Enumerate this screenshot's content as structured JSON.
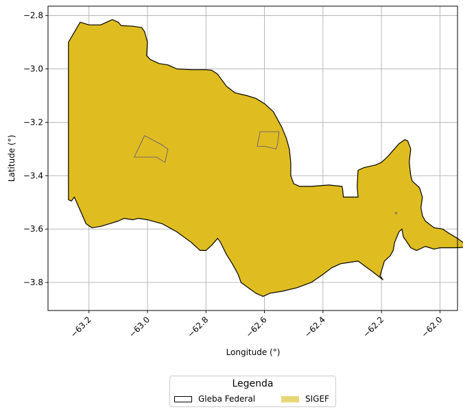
{
  "chart_data": {
    "type": "map",
    "xlabel": "Longitude (°)",
    "ylabel": "Latitude (°)",
    "xlim": [
      -63.34,
      -61.94
    ],
    "ylim": [
      -3.905,
      -2.765
    ],
    "grid": true,
    "x_ticks": [
      -63.2,
      -63.0,
      -62.8,
      -62.6,
      -62.4,
      -62.2,
      -62.0
    ],
    "x_tick_labels": [
      "−63.2",
      "−63.0",
      "−62.8",
      "−62.6",
      "−62.4",
      "−62.2",
      "−62.0"
    ],
    "y_ticks": [
      -2.8,
      -3.0,
      -3.2,
      -3.4,
      -3.6,
      -3.8
    ],
    "y_tick_labels": [
      "−2.8",
      "−3.0",
      "−3.2",
      "−3.4",
      "−3.6",
      "−3.8"
    ],
    "legend": {
      "title": "Legenda",
      "placement": "bottom-center",
      "entries": [
        {
          "label": "Gleba Federal",
          "fill": "#ffffff",
          "edge": "#000000"
        },
        {
          "label": "SIGEF",
          "fill": "#e8d775",
          "edge": "#e8d775"
        }
      ]
    },
    "colors": {
      "sigef_fill": "#dfbd20",
      "gleba_edge": "#000000",
      "inner_edge": "#5a4a8a",
      "grid": "#b0b0b0"
    },
    "series": [
      {
        "name": "SIGEF",
        "kind": "polygon",
        "coords": [
          [
            -63.27,
            -2.9
          ],
          [
            -63.23,
            -2.825
          ],
          [
            -63.215,
            -2.83
          ],
          [
            -63.2,
            -2.835
          ],
          [
            -63.16,
            -2.835
          ],
          [
            -63.13,
            -2.82
          ],
          [
            -63.12,
            -2.815
          ],
          [
            -63.1,
            -2.825
          ],
          [
            -63.09,
            -2.838
          ],
          [
            -63.05,
            -2.84
          ],
          [
            -63.02,
            -2.845
          ],
          [
            -63.01,
            -2.86
          ],
          [
            -63.0,
            -2.9
          ],
          [
            -63.003,
            -2.95
          ],
          [
            -62.99,
            -2.965
          ],
          [
            -62.96,
            -2.98
          ],
          [
            -62.93,
            -2.985
          ],
          [
            -62.9,
            -3.0
          ],
          [
            -62.85,
            -3.003
          ],
          [
            -62.8,
            -3.003
          ],
          [
            -62.78,
            -3.005
          ],
          [
            -62.76,
            -3.02
          ],
          [
            -62.73,
            -3.065
          ],
          [
            -62.7,
            -3.09
          ],
          [
            -62.66,
            -3.1
          ],
          [
            -62.63,
            -3.11
          ],
          [
            -62.6,
            -3.13
          ],
          [
            -62.57,
            -3.16
          ],
          [
            -62.54,
            -3.22
          ],
          [
            -62.525,
            -3.26
          ],
          [
            -62.515,
            -3.3
          ],
          [
            -62.51,
            -3.35
          ],
          [
            -62.51,
            -3.4
          ],
          [
            -62.5,
            -3.43
          ],
          [
            -62.48,
            -3.44
          ],
          [
            -62.44,
            -3.44
          ],
          [
            -62.38,
            -3.435
          ],
          [
            -62.335,
            -3.44
          ],
          [
            -62.333,
            -3.45
          ],
          [
            -62.33,
            -3.48
          ],
          [
            -62.31,
            -3.48
          ],
          [
            -62.28,
            -3.48
          ],
          [
            -62.283,
            -3.44
          ],
          [
            -62.28,
            -3.38
          ],
          [
            -62.26,
            -3.37
          ],
          [
            -62.22,
            -3.36
          ],
          [
            -62.2,
            -3.35
          ],
          [
            -62.18,
            -3.33
          ],
          [
            -62.16,
            -3.305
          ],
          [
            -62.14,
            -3.28
          ],
          [
            -62.12,
            -3.265
          ],
          [
            -62.11,
            -3.27
          ],
          [
            -62.1,
            -3.3
          ],
          [
            -62.105,
            -3.35
          ],
          [
            -62.1,
            -3.4
          ],
          [
            -62.095,
            -3.42
          ],
          [
            -62.07,
            -3.445
          ],
          [
            -62.06,
            -3.48
          ],
          [
            -62.065,
            -3.52
          ],
          [
            -62.06,
            -3.55
          ],
          [
            -62.05,
            -3.57
          ],
          [
            -62.02,
            -3.595
          ],
          [
            -61.99,
            -3.6
          ],
          [
            -61.97,
            -3.615
          ],
          [
            -61.94,
            -3.635
          ],
          [
            -61.915,
            -3.655
          ],
          [
            -61.883,
            -3.667
          ],
          [
            -61.95,
            -3.67
          ],
          [
            -62.0,
            -3.67
          ],
          [
            -62.02,
            -3.675
          ],
          [
            -62.05,
            -3.665
          ],
          [
            -62.08,
            -3.68
          ],
          [
            -62.1,
            -3.67
          ],
          [
            -62.115,
            -3.645
          ],
          [
            -62.125,
            -3.63
          ],
          [
            -62.13,
            -3.6
          ],
          [
            -62.14,
            -3.61
          ],
          [
            -62.155,
            -3.65
          ],
          [
            -62.16,
            -3.68
          ],
          [
            -62.17,
            -3.7
          ],
          [
            -62.19,
            -3.72
          ],
          [
            -62.205,
            -3.775
          ],
          [
            -62.195,
            -3.79
          ],
          [
            -62.23,
            -3.76
          ],
          [
            -62.28,
            -3.72
          ],
          [
            -62.34,
            -3.73
          ],
          [
            -62.37,
            -3.745
          ],
          [
            -62.4,
            -3.77
          ],
          [
            -62.44,
            -3.8
          ],
          [
            -62.49,
            -3.82
          ],
          [
            -62.54,
            -3.833
          ],
          [
            -62.58,
            -3.84
          ],
          [
            -62.605,
            -3.852
          ],
          [
            -62.63,
            -3.84
          ],
          [
            -62.68,
            -3.8
          ],
          [
            -62.69,
            -3.77
          ],
          [
            -62.71,
            -3.73
          ],
          [
            -62.73,
            -3.695
          ],
          [
            -62.75,
            -3.65
          ],
          [
            -62.76,
            -3.635
          ],
          [
            -62.78,
            -3.66
          ],
          [
            -62.8,
            -3.68
          ],
          [
            -62.82,
            -3.68
          ],
          [
            -62.85,
            -3.65
          ],
          [
            -62.9,
            -3.61
          ],
          [
            -62.95,
            -3.58
          ],
          [
            -63.0,
            -3.565
          ],
          [
            -63.03,
            -3.56
          ],
          [
            -63.05,
            -3.565
          ],
          [
            -63.08,
            -3.56
          ],
          [
            -63.1,
            -3.57
          ],
          [
            -63.13,
            -3.58
          ],
          [
            -63.16,
            -3.59
          ],
          [
            -63.19,
            -3.595
          ],
          [
            -63.21,
            -3.58
          ],
          [
            -63.23,
            -3.53
          ],
          [
            -63.25,
            -3.48
          ],
          [
            -63.26,
            -3.495
          ],
          [
            -63.27,
            -3.49
          ]
        ]
      },
      {
        "name": "Gleba Federal",
        "kind": "hole",
        "coords": [
          [
            -63.01,
            -3.25
          ],
          [
            -62.95,
            -3.285
          ],
          [
            -62.93,
            -3.3
          ],
          [
            -62.935,
            -3.325
          ],
          [
            -62.94,
            -3.35
          ],
          [
            -62.97,
            -3.33
          ],
          [
            -63.045,
            -3.33
          ]
        ]
      },
      {
        "name": "Gleba Federal",
        "kind": "hole",
        "coords": [
          [
            -62.615,
            -3.235
          ],
          [
            -62.55,
            -3.235
          ],
          [
            -62.555,
            -3.28
          ],
          [
            -62.56,
            -3.3
          ],
          [
            -62.58,
            -3.295
          ],
          [
            -62.6,
            -3.29
          ],
          [
            -62.625,
            -3.29
          ]
        ]
      },
      {
        "name": "Gleba Federal",
        "kind": "point",
        "coords": [
          [
            -62.15,
            -3.54
          ],
          [
            -61.91,
            -3.655
          ]
        ]
      }
    ]
  }
}
